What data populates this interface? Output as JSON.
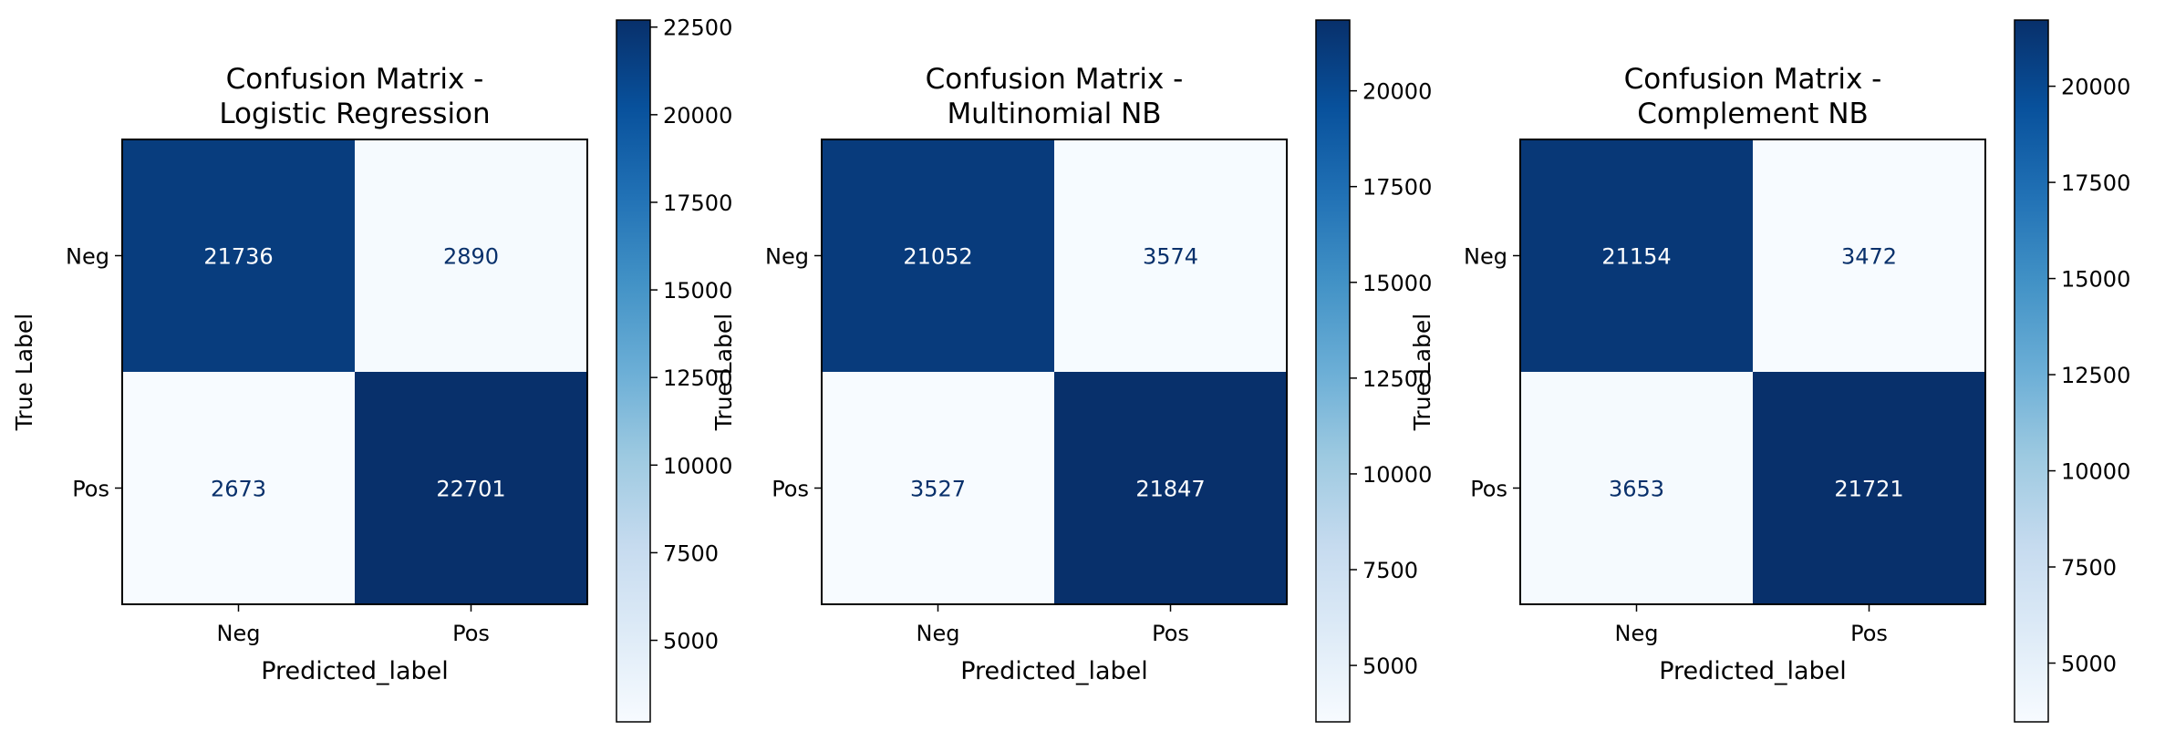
{
  "chart_data": [
    {
      "type": "heatmap",
      "title": "Confusion Matrix -\nLogistic Regression",
      "xlabel": "Predicted_label",
      "ylabel": "True Label",
      "x_categories": [
        "Neg",
        "Pos"
      ],
      "y_categories": [
        "Neg",
        "Pos"
      ],
      "values": [
        [
          21736,
          2890
        ],
        [
          2673,
          22701
        ]
      ],
      "colormap": "Blues",
      "colorbar": {
        "vmin": 2673,
        "vmax": 22701,
        "ticks": [
          5000,
          7500,
          10000,
          12500,
          15000,
          17500,
          20000,
          22500
        ]
      }
    },
    {
      "type": "heatmap",
      "title": "Confusion Matrix -\nMultinomial NB",
      "xlabel": "Predicted_label",
      "ylabel": "True Label",
      "x_categories": [
        "Neg",
        "Pos"
      ],
      "y_categories": [
        "Neg",
        "Pos"
      ],
      "values": [
        [
          21052,
          3574
        ],
        [
          3527,
          21847
        ]
      ],
      "colormap": "Blues",
      "colorbar": {
        "vmin": 3527,
        "vmax": 21847,
        "ticks": [
          5000,
          7500,
          10000,
          12500,
          15000,
          17500,
          20000
        ]
      }
    },
    {
      "type": "heatmap",
      "title": "Confusion Matrix -\nComplement NB",
      "xlabel": "Predicted_label",
      "ylabel": "True Label",
      "x_categories": [
        "Neg",
        "Pos"
      ],
      "y_categories": [
        "Neg",
        "Pos"
      ],
      "values": [
        [
          21154,
          3472
        ],
        [
          3653,
          21721
        ]
      ],
      "colormap": "Blues",
      "colorbar": {
        "vmin": 3472,
        "vmax": 21721,
        "ticks": [
          5000,
          7500,
          10000,
          12500,
          15000,
          17500,
          20000
        ]
      }
    }
  ]
}
